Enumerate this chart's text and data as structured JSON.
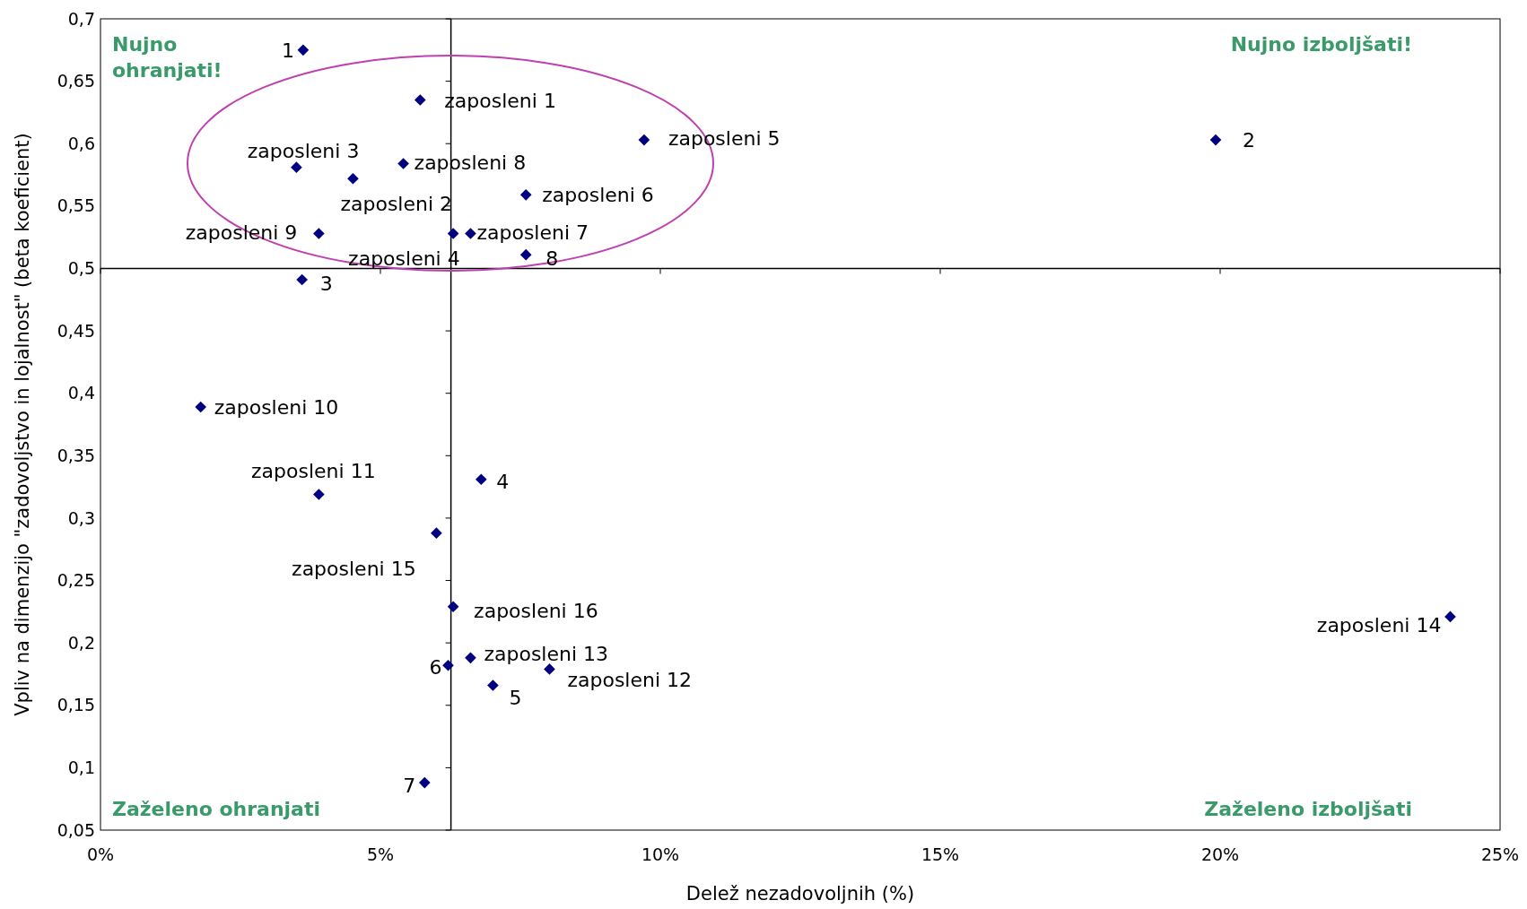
{
  "chart_data": {
    "type": "scatter",
    "xlabel": "Delež nezadovoljnih (%)",
    "ylabel": "Vpliv na dimenzijo \"zadovoljstvo in lojalnost\" (beta koeficient)",
    "x": [
      3.62,
      5.71,
      9.71,
      19.92,
      3.5,
      5.41,
      4.51,
      7.6,
      3.9,
      6.3,
      6.61,
      7.6,
      3.6,
      1.79,
      3.9,
      6.8,
      6.0,
      6.3,
      6.61,
      6.21,
      8.02,
      7.01,
      5.79,
      24.11
    ],
    "series": [
      {
        "color": "#000080",
        "values": [
          0.675,
          0.635,
          0.603,
          0.603,
          0.581,
          0.584,
          0.572,
          0.559,
          0.528,
          0.528,
          0.528,
          0.511,
          0.491,
          0.389,
          0.319,
          0.331,
          0.288,
          0.229,
          0.188,
          0.182,
          0.179,
          0.166,
          0.088,
          0.221
        ]
      }
    ],
    "marker": "diamond",
    "grid": false,
    "xlim": [
      0,
      25
    ],
    "xticks": [
      {
        "value": 0,
        "label": "0%"
      },
      {
        "value": 5,
        "label": "5%"
      },
      {
        "value": 10,
        "label": "10%"
      },
      {
        "value": 15,
        "label": "15%"
      },
      {
        "value": 20,
        "label": "20%"
      },
      {
        "value": 25,
        "label": "25%"
      }
    ],
    "ylim": [
      0.05,
      0.7
    ],
    "yticks": [
      {
        "value": 0.05,
        "label": "0,05"
      },
      {
        "value": 0.1,
        "label": "0,1"
      },
      {
        "value": 0.15,
        "label": "0,15"
      },
      {
        "value": 0.2,
        "label": "0,2"
      },
      {
        "value": 0.25,
        "label": "0,25"
      },
      {
        "value": 0.3,
        "label": "0,3"
      },
      {
        "value": 0.35,
        "label": "0,35"
      },
      {
        "value": 0.4,
        "label": "0,4"
      },
      {
        "value": 0.45,
        "label": "0,45"
      },
      {
        "value": 0.5,
        "label": "0,5"
      },
      {
        "value": 0.55,
        "label": "0,55"
      },
      {
        "value": 0.6,
        "label": "0,6"
      },
      {
        "value": 0.65,
        "label": "0,65"
      },
      {
        "value": 0.7,
        "label": "0,7"
      }
    ],
    "ref_lines": [
      {
        "axis": "x",
        "value": 6.26,
        "color": "#000000"
      },
      {
        "axis": "y",
        "value": 0.5,
        "color": "#000000"
      }
    ],
    "annotations": [
      {
        "text": "1",
        "x": 3.62,
        "y": 0.675
      },
      {
        "text": "zaposleni 1",
        "x": 5.71,
        "y": 0.635
      },
      {
        "text": "zaposleni 5",
        "x": 9.71,
        "y": 0.603
      },
      {
        "text": "2",
        "x": 19.92,
        "y": 0.603
      },
      {
        "text": "zaposleni 3",
        "x": 3.5,
        "y": 0.581
      },
      {
        "text": "zaposleni 8",
        "x": 5.41,
        "y": 0.584
      },
      {
        "text": "zaposleni 2",
        "x": 4.51,
        "y": 0.572
      },
      {
        "text": "zaposleni 6",
        "x": 7.6,
        "y": 0.559
      },
      {
        "text": "zaposleni 9",
        "x": 3.9,
        "y": 0.528
      },
      {
        "text": "zaposleni 4",
        "x": 6.3,
        "y": 0.528
      },
      {
        "text": "zaposleni 7",
        "x": 6.61,
        "y": 0.528
      },
      {
        "text": "8",
        "x": 7.6,
        "y": 0.511
      },
      {
        "text": "3",
        "x": 3.6,
        "y": 0.491
      },
      {
        "text": "zaposleni 10",
        "x": 1.79,
        "y": 0.389
      },
      {
        "text": "zaposleni 11",
        "x": 3.9,
        "y": 0.319
      },
      {
        "text": "4",
        "x": 6.8,
        "y": 0.331
      },
      {
        "text": "zaposleni 15",
        "x": 6.0,
        "y": 0.288
      },
      {
        "text": "zaposleni 16",
        "x": 6.3,
        "y": 0.229
      },
      {
        "text": "zaposleni 13",
        "x": 6.61,
        "y": 0.188
      },
      {
        "text": "6",
        "x": 6.21,
        "y": 0.182
      },
      {
        "text": "zaposleni 12",
        "x": 8.02,
        "y": 0.179
      },
      {
        "text": "5",
        "x": 7.01,
        "y": 0.166
      },
      {
        "text": "7",
        "x": 5.79,
        "y": 0.088
      },
      {
        "text": "zaposleni 14",
        "x": 24.11,
        "y": 0.221
      },
      "Nujno\nohranjati!",
      "Nujno izboljšati!",
      "Zaželeno ohranjati",
      "Zaželeno izboljšati"
    ]
  }
}
